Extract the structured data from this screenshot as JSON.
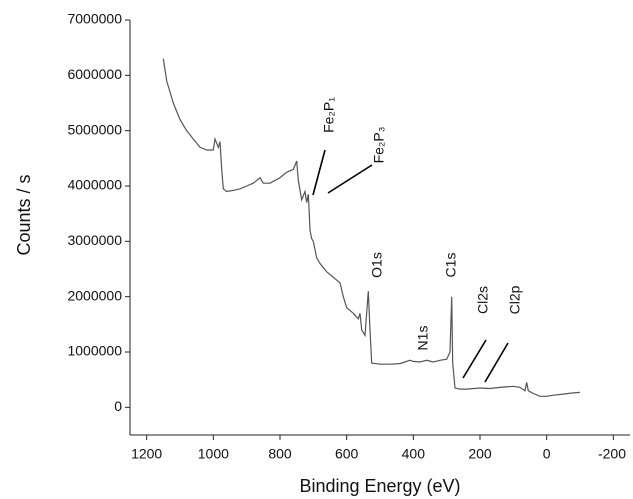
{
  "chart_data": {
    "type": "line",
    "x_label": "Binding Energy (eV)",
    "y_label": "Counts / s",
    "xlim": [
      1250,
      -250
    ],
    "xticks": [
      1200,
      1000,
      800,
      600,
      400,
      200,
      0,
      -200
    ],
    "ylim": [
      -500000,
      7000000
    ],
    "yticks": [
      0,
      1000000,
      2000000,
      3000000,
      4000000,
      5000000,
      6000000,
      7000000
    ],
    "color": "#555555",
    "x": [
      1150,
      1140,
      1120,
      1100,
      1080,
      1060,
      1040,
      1020,
      1000,
      995,
      985,
      980,
      975,
      970,
      960,
      940,
      920,
      900,
      880,
      860,
      850,
      830,
      800,
      780,
      760,
      750,
      745,
      735,
      725,
      720,
      715,
      712,
      710,
      705,
      700,
      690,
      680,
      660,
      640,
      620,
      610,
      600,
      580,
      565,
      560,
      555,
      545,
      535,
      530,
      525,
      500,
      470,
      440,
      410,
      400,
      380,
      360,
      340,
      320,
      300,
      290,
      285,
      282,
      275,
      260,
      240,
      200,
      170,
      140,
      100,
      80,
      65,
      60,
      55,
      40,
      20,
      0,
      -20,
      -50,
      -80,
      -100
    ],
    "values": [
      6300000,
      5900000,
      5500000,
      5200000,
      5000000,
      4850000,
      4700000,
      4650000,
      4650000,
      4850000,
      4700000,
      4800000,
      4300000,
      3950000,
      3900000,
      3920000,
      3950000,
      4000000,
      4050000,
      4150000,
      4050000,
      4050000,
      4150000,
      4250000,
      4300000,
      4450000,
      4100000,
      3750000,
      3900000,
      3700000,
      3850000,
      3500000,
      3200000,
      3050000,
      3000000,
      2700000,
      2600000,
      2450000,
      2350000,
      2250000,
      2000000,
      1800000,
      1700000,
      1600000,
      1700000,
      1400000,
      1300000,
      2100000,
      1400000,
      800000,
      780000,
      780000,
      790000,
      850000,
      830000,
      820000,
      850000,
      820000,
      850000,
      870000,
      1000000,
      2000000,
      800000,
      350000,
      330000,
      330000,
      350000,
      340000,
      360000,
      380000,
      360000,
      300000,
      450000,
      300000,
      250000,
      200000,
      200000,
      220000,
      240000,
      260000,
      270000
    ],
    "annotations": [
      "Fe₂P₁",
      "Fe₂P₃",
      "O1s",
      "N1s",
      "C1s",
      "Cl2s",
      "Cl2p"
    ]
  }
}
